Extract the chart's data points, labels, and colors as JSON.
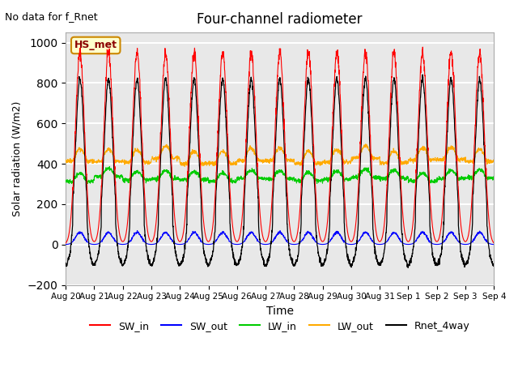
{
  "title": "Four-channel radiometer",
  "xlabel": "Time",
  "ylabel": "Solar radiation (W/m2)",
  "annotation": "No data for f_Rnet",
  "station_label": "HS_met",
  "ylim": [
    -200,
    1050
  ],
  "date_labels": [
    "Aug 20",
    "Aug 21",
    "Aug 22",
    "Aug 23",
    "Aug 24",
    "Aug 25",
    "Aug 26",
    "Aug 27",
    "Aug 28",
    "Aug 29",
    "Aug 30",
    "Aug 31",
    "Sep 1",
    "Sep 2",
    "Sep 3",
    "Sep 4"
  ],
  "colors": {
    "SW_in": "#ff0000",
    "SW_out": "#0000ff",
    "LW_in": "#00cc00",
    "LW_out": "#ffaa00",
    "Rnet_4way": "#000000"
  },
  "bg_color": "#e8e8e8",
  "grid_color": "#ffffff",
  "n_days": 15,
  "pts_per_day": 144,
  "SW_in_peak": 950,
  "SW_out_peak": 60,
  "LW_in_base": 320,
  "LW_in_amp": 40,
  "LW_out_base": 410,
  "LW_out_amp": 60,
  "Rnet_peak": 820,
  "Rnet_night": -100
}
